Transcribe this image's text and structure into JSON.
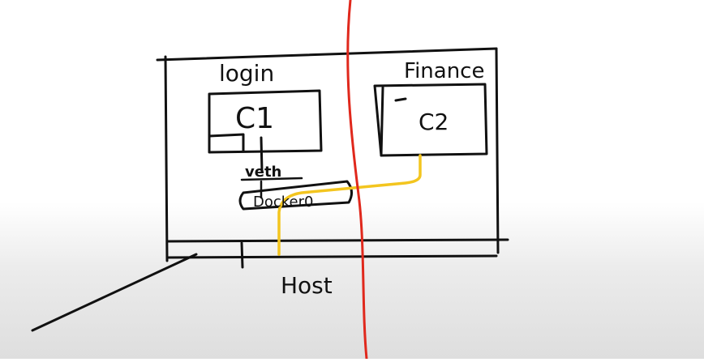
{
  "labels": {
    "left_zone": "login",
    "right_zone": "Finance",
    "container_1": "C1",
    "container_2": "C2",
    "interface": "veth",
    "bridge": "Docker0",
    "host": "Host"
  },
  "colors": {
    "ink": "#111111",
    "boundary_line": "#e0281c",
    "connection_line": "#f3c51f"
  }
}
